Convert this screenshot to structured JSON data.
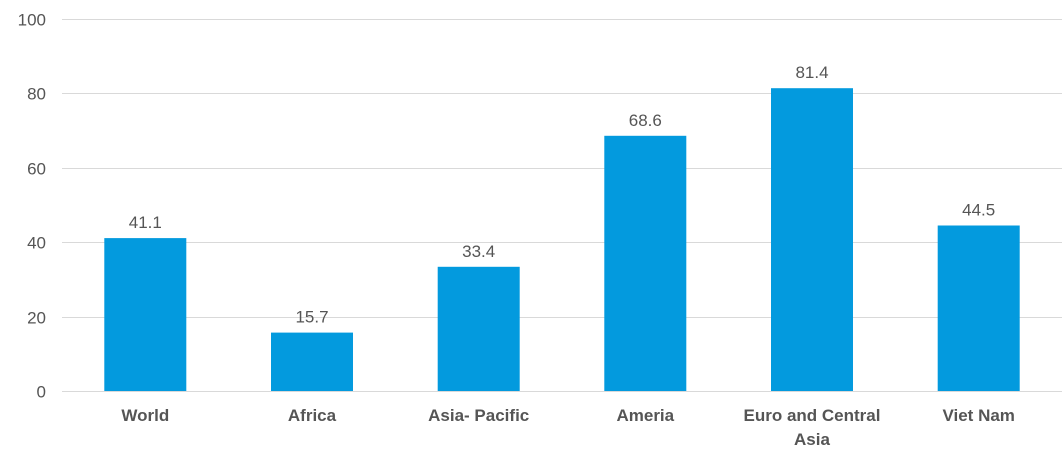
{
  "chart_data": {
    "type": "bar",
    "categories": [
      "World",
      "Africa",
      "Asia- Pacific",
      "Ameria",
      "Euro and Central Asia",
      "Viet Nam"
    ],
    "values": [
      41.1,
      15.7,
      33.4,
      68.6,
      81.4,
      44.5
    ],
    "value_labels": [
      "41.1",
      "15.7",
      "33.4",
      "68.6",
      "81.4",
      "44.5"
    ],
    "title": "",
    "xlabel": "",
    "ylabel": "",
    "ylim": [
      0,
      100
    ],
    "yticks": [
      0,
      20,
      40,
      60,
      80,
      100
    ],
    "ytick_labels": [
      "0",
      "20",
      "40",
      "60",
      "80",
      "100"
    ],
    "grid": true,
    "legend": "none",
    "bar_color": "#039ade",
    "grid_color": "#d9d9d9",
    "text_color": "#555555"
  }
}
